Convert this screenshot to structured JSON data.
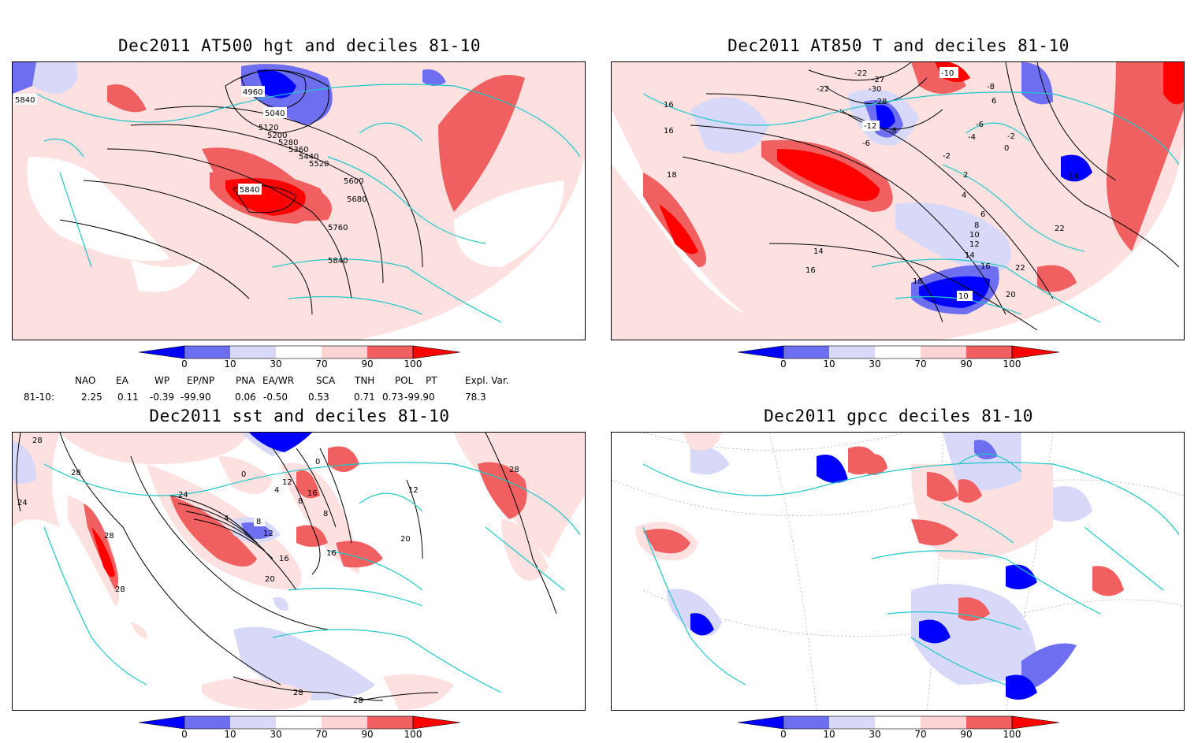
{
  "panels": [
    {
      "title": "Dec2011 AT500 hgt and deciles 81-10",
      "contour_labels": [
        "5840",
        "4960",
        "5040",
        "5120",
        "5200",
        "5280",
        "5360",
        "5440",
        "5520",
        "5600",
        "5680",
        "5760",
        "5840",
        "5840"
      ]
    },
    {
      "title": "Dec2011 AT850 T and deciles 81-10",
      "contour_labels": [
        "-10",
        "-22",
        "-22",
        "-27",
        "-30",
        "-28",
        "-12",
        "-8",
        "-6",
        "-6",
        "-2",
        "-2",
        "2",
        "4",
        "6",
        "8",
        "10",
        "12",
        "14",
        "14",
        "16",
        "16",
        "16",
        "16",
        "18",
        "18",
        "20",
        "22",
        "22",
        "14",
        "6",
        "0",
        "-4",
        "-8",
        "10"
      ]
    },
    {
      "title": "Dec2011 sst and deciles 81-10",
      "contour_labels": [
        "28",
        "28",
        "24",
        "24",
        "28",
        "28",
        "0",
        "0",
        "4",
        "4",
        "8",
        "8",
        "8",
        "12",
        "12",
        "16",
        "16",
        "16",
        "20",
        "20",
        "12",
        "28",
        "28",
        "28"
      ]
    },
    {
      "title": "Dec2011 gpcc deciles 81-10",
      "contour_labels": []
    }
  ],
  "colorbar": {
    "ticks": [
      "0",
      "10",
      "30",
      "70",
      "90",
      "100"
    ],
    "colors": [
      "#0000ff",
      "#6e6ef0",
      "#d8d8f8",
      "#ffffff",
      "#fcd4d4",
      "#f06060",
      "#ff0000"
    ]
  },
  "indices": {
    "headers": [
      "NAO",
      "EA",
      "WP",
      "EP/NP",
      "PNA",
      "EA/WR",
      "SCA",
      "TNH",
      "POL",
      "PT",
      "Expl. Var."
    ],
    "row_label": "81-10:",
    "values": [
      "2.25",
      "0.11",
      "-0.39",
      "-99.90",
      "0.06",
      "-0.50",
      "0.53",
      "0.71",
      "0.73",
      "-99.90",
      "78.3"
    ]
  }
}
